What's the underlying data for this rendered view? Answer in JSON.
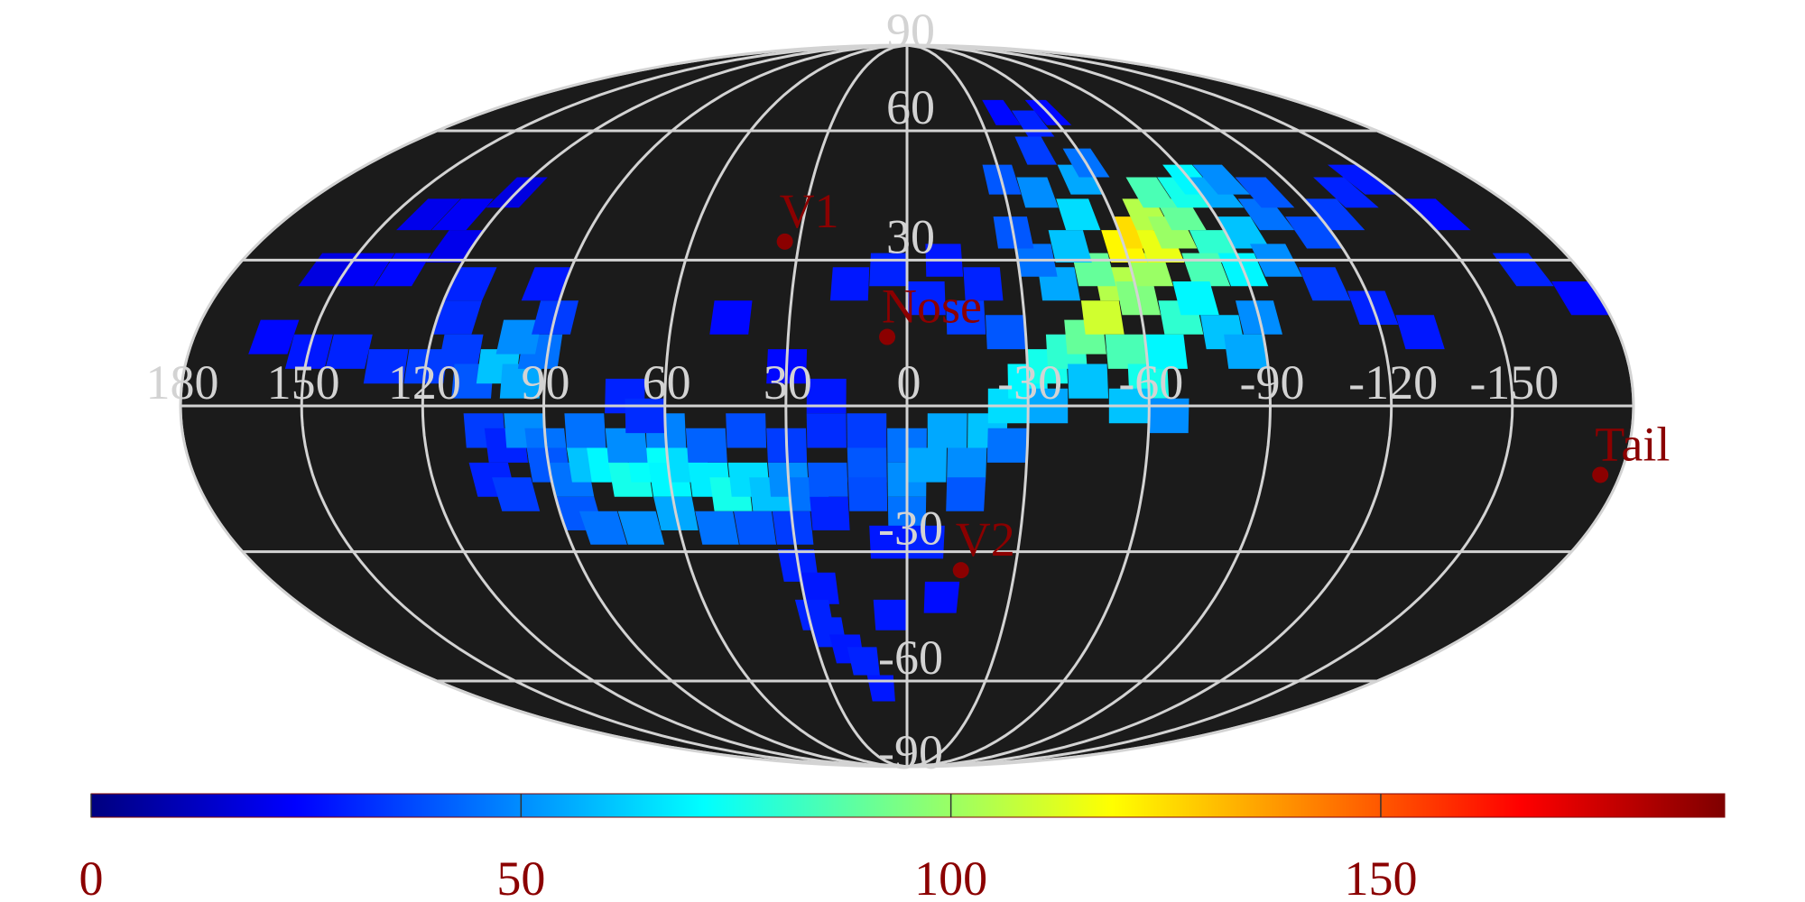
{
  "chart_data": {
    "type": "heatmap",
    "projection": "mollweide",
    "title": "",
    "colormap": "jet",
    "colorbar": {
      "range": [
        0,
        190
      ],
      "ticks": [
        "0",
        "50",
        "100",
        "150"
      ],
      "tick_values": [
        0,
        50,
        100,
        150
      ],
      "placement": "bottom"
    },
    "background_color": "#1b1b1b",
    "grid": true,
    "grid_color": "#d3d3d3",
    "longitude_labels": [
      "180",
      "150",
      "120",
      "90",
      "60",
      "30",
      "0",
      "-30",
      "-60",
      "-90",
      "-120",
      "-150"
    ],
    "longitude_values": [
      180,
      150,
      120,
      90,
      60,
      30,
      0,
      -30,
      -60,
      -90,
      -120,
      -150
    ],
    "latitude_labels": [
      "90",
      "60",
      "30",
      "-30",
      "-60",
      "-90"
    ],
    "latitude_values": [
      90,
      60,
      30,
      -30,
      -60,
      -90
    ],
    "markers": [
      {
        "label": "V1",
        "lon": 34,
        "lat": 34
      },
      {
        "label": "Nose",
        "lon": 5,
        "lat": 14
      },
      {
        "label": "V2",
        "lon": -15,
        "lat": -34
      },
      {
        "label": "Tail",
        "lon": -175,
        "lat": -14
      }
    ],
    "cells": [
      [
        160,
        14,
        25
      ],
      [
        150,
        11,
        28
      ],
      [
        140,
        11,
        30
      ],
      [
        130,
        8,
        32
      ],
      [
        120,
        8,
        35
      ],
      [
        155,
        28,
        18
      ],
      [
        145,
        28,
        22
      ],
      [
        135,
        28,
        25
      ],
      [
        125,
        33,
        20
      ],
      [
        140,
        40,
        20
      ],
      [
        130,
        40,
        22
      ],
      [
        120,
        45,
        18
      ],
      [
        115,
        25,
        30
      ],
      [
        115,
        18,
        32
      ],
      [
        112,
        11,
        35
      ],
      [
        108,
        5,
        40
      ],
      [
        102,
        8,
        60
      ],
      [
        96,
        5,
        55
      ],
      [
        92,
        11,
        45
      ],
      [
        98,
        14,
        50
      ],
      [
        90,
        18,
        35
      ],
      [
        95,
        25,
        28
      ],
      [
        105,
        -5,
        35
      ],
      [
        100,
        -8,
        30
      ],
      [
        95,
        -5,
        50
      ],
      [
        90,
        -8,
        45
      ],
      [
        105,
        -15,
        30
      ],
      [
        100,
        -18,
        35
      ],
      [
        90,
        -12,
        40
      ],
      [
        85,
        -15,
        45
      ],
      [
        80,
        -12,
        60
      ],
      [
        75,
        -12,
        70
      ],
      [
        70,
        -15,
        75
      ],
      [
        65,
        -12,
        72
      ],
      [
        60,
        -15,
        70
      ],
      [
        55,
        -12,
        65
      ],
      [
        50,
        -15,
        68
      ],
      [
        45,
        -18,
        75
      ],
      [
        40,
        -15,
        65
      ],
      [
        35,
        -18,
        60
      ],
      [
        30,
        -15,
        50
      ],
      [
        25,
        -18,
        45
      ],
      [
        20,
        -15,
        40
      ],
      [
        85,
        -22,
        40
      ],
      [
        80,
        -25,
        45
      ],
      [
        70,
        -25,
        50
      ],
      [
        60,
        -22,
        55
      ],
      [
        50,
        -25,
        45
      ],
      [
        40,
        -25,
        40
      ],
      [
        30,
        -25,
        35
      ],
      [
        20,
        -22,
        30
      ],
      [
        80,
        -5,
        45
      ],
      [
        70,
        -8,
        50
      ],
      [
        60,
        -5,
        48
      ],
      [
        50,
        -8,
        42
      ],
      [
        40,
        -5,
        38
      ],
      [
        30,
        -8,
        35
      ],
      [
        20,
        -5,
        32
      ],
      [
        10,
        -5,
        35
      ],
      [
        10,
        -12,
        40
      ],
      [
        10,
        -18,
        38
      ],
      [
        0,
        -8,
        45
      ],
      [
        0,
        -15,
        50
      ],
      [
        0,
        -22,
        45
      ],
      [
        -5,
        -12,
        55
      ],
      [
        -10,
        -5,
        55
      ],
      [
        -15,
        -12,
        50
      ],
      [
        -15,
        -18,
        40
      ],
      [
        -5,
        -28,
        30
      ],
      [
        5,
        -28,
        28
      ],
      [
        -20,
        -5,
        60
      ],
      [
        -25,
        0,
        65
      ],
      [
        -30,
        5,
        70
      ],
      [
        -35,
        8,
        75
      ],
      [
        -40,
        11,
        80
      ],
      [
        -25,
        -8,
        45
      ],
      [
        -35,
        0,
        55
      ],
      [
        -45,
        5,
        60
      ],
      [
        -45,
        14,
        90
      ],
      [
        -50,
        18,
        110
      ],
      [
        -55,
        25,
        105
      ],
      [
        -50,
        28,
        90
      ],
      [
        -60,
        22,
        95
      ],
      [
        -65,
        28,
        100
      ],
      [
        -60,
        33,
        120
      ],
      [
        -65,
        36,
        125
      ],
      [
        -70,
        33,
        115
      ],
      [
        -70,
        40,
        105
      ],
      [
        -75,
        36,
        100
      ],
      [
        -80,
        40,
        90
      ],
      [
        -75,
        45,
        85
      ],
      [
        -85,
        45,
        75
      ],
      [
        -90,
        48,
        70
      ],
      [
        -95,
        45,
        55
      ],
      [
        -100,
        48,
        50
      ],
      [
        -85,
        33,
        80
      ],
      [
        -80,
        28,
        85
      ],
      [
        -90,
        28,
        70
      ],
      [
        -95,
        36,
        60
      ],
      [
        -100,
        30,
        50
      ],
      [
        -105,
        40,
        45
      ],
      [
        -110,
        45,
        40
      ],
      [
        -55,
        11,
        85
      ],
      [
        -60,
        5,
        75
      ],
      [
        -65,
        11,
        70
      ],
      [
        -70,
        18,
        80
      ],
      [
        -75,
        22,
        70
      ],
      [
        -80,
        15,
        60
      ],
      [
        -85,
        11,
        55
      ],
      [
        -90,
        18,
        50
      ],
      [
        -55,
        0,
        60
      ],
      [
        -65,
        -2,
        50
      ],
      [
        -40,
        25,
        55
      ],
      [
        -35,
        30,
        45
      ],
      [
        -30,
        36,
        40
      ],
      [
        -45,
        33,
        60
      ],
      [
        -50,
        40,
        65
      ],
      [
        -40,
        45,
        50
      ],
      [
        -30,
        48,
        40
      ],
      [
        -55,
        48,
        55
      ],
      [
        -60,
        52,
        45
      ],
      [
        -45,
        55,
        35
      ],
      [
        -50,
        62,
        30
      ],
      [
        -40,
        65,
        25
      ],
      [
        -60,
        65,
        25
      ],
      [
        -110,
        25,
        35
      ],
      [
        -120,
        20,
        30
      ],
      [
        -130,
        15,
        28
      ],
      [
        -115,
        36,
        38
      ],
      [
        -125,
        40,
        35
      ],
      [
        -135,
        45,
        30
      ],
      [
        -145,
        48,
        28
      ],
      [
        -155,
        40,
        25
      ],
      [
        -165,
        28,
        30
      ],
      [
        -175,
        22,
        25
      ],
      [
        -20,
        25,
        30
      ],
      [
        -15,
        18,
        35
      ],
      [
        -25,
        15,
        40
      ],
      [
        -10,
        30,
        28
      ],
      [
        5,
        28,
        30
      ],
      [
        15,
        25,
        28
      ],
      [
        -5,
        22,
        30
      ],
      [
        20,
        2,
        28
      ],
      [
        45,
        18,
        25
      ],
      [
        30,
        8,
        25
      ],
      [
        30,
        -33,
        30
      ],
      [
        25,
        -38,
        28
      ],
      [
        28,
        -44,
        30
      ],
      [
        25,
        -48,
        30
      ],
      [
        20,
        -52,
        28
      ],
      [
        15,
        -55,
        30
      ],
      [
        5,
        -44,
        28
      ],
      [
        -10,
        -40,
        26
      ],
      [
        10,
        -62,
        28
      ],
      [
        70,
        2,
        30
      ],
      [
        65,
        -2,
        32
      ]
    ]
  }
}
